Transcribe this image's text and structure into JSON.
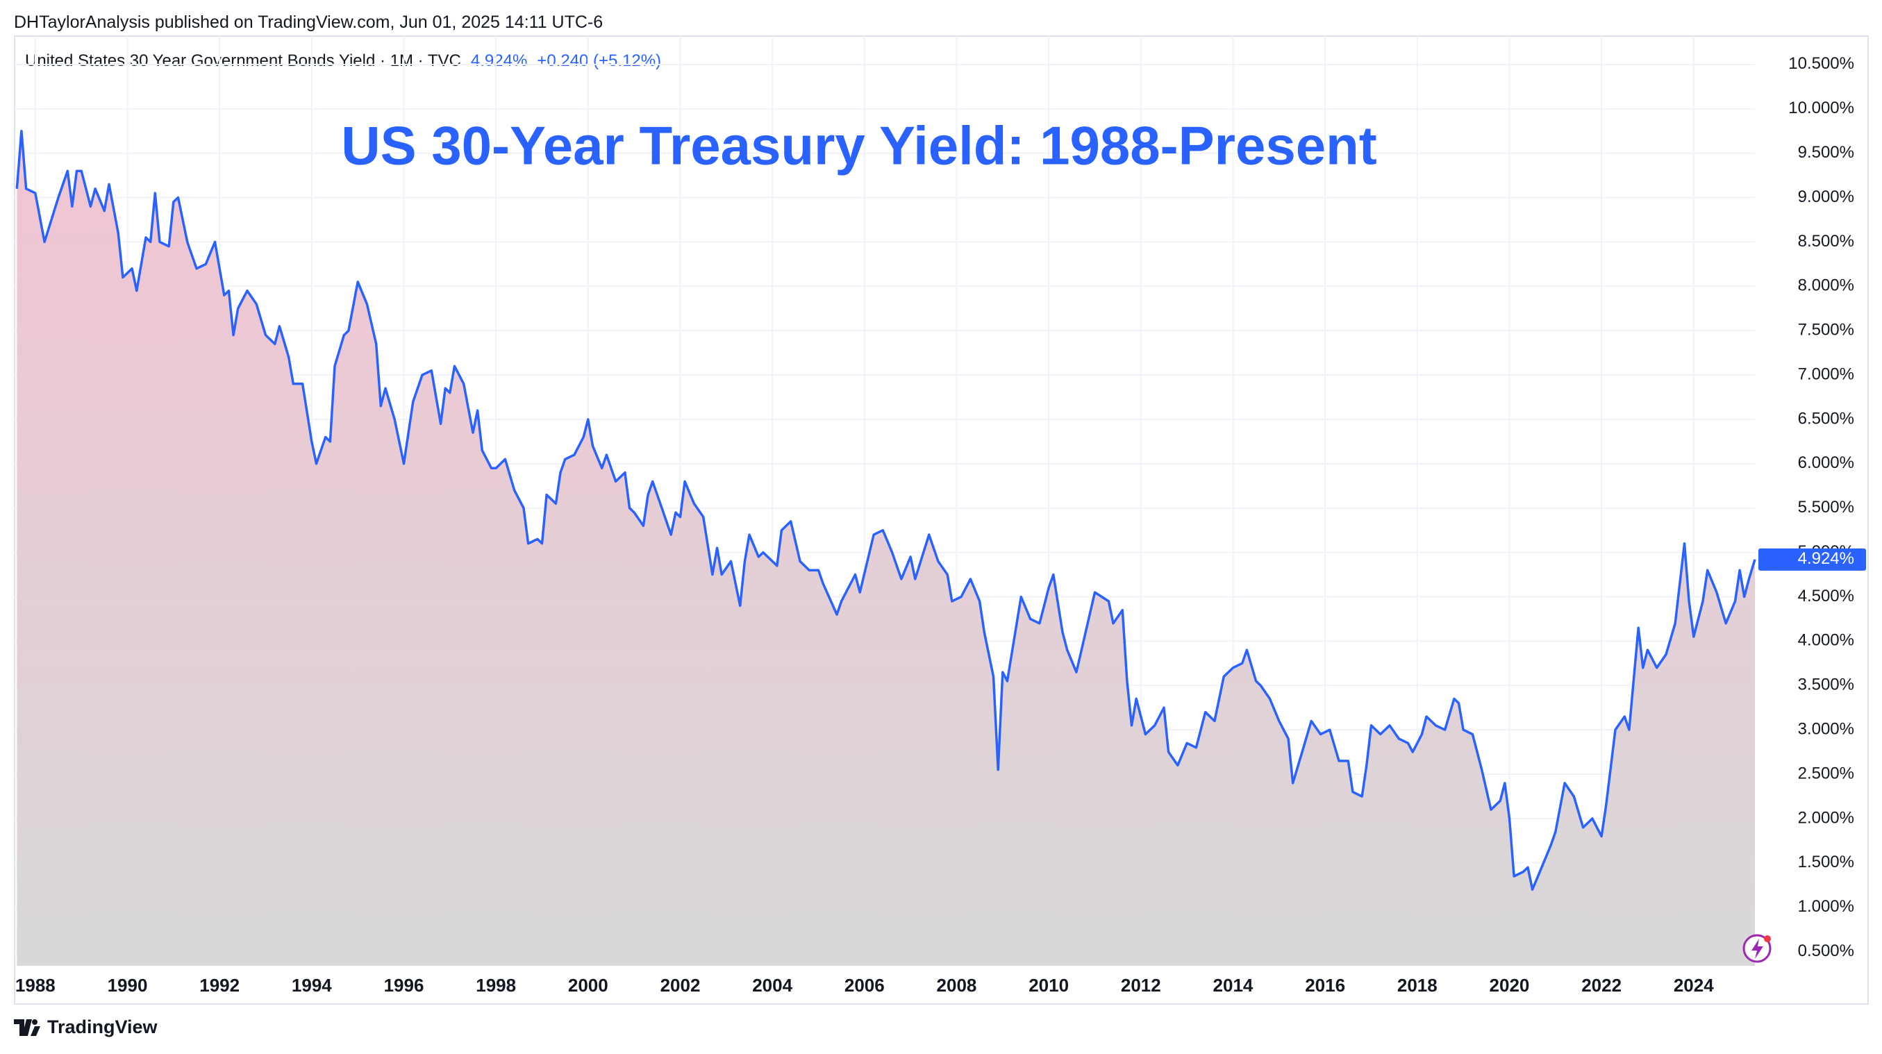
{
  "header": {
    "published": "DHTaylorAnalysis published on TradingView.com, Jun 01, 2025 14:11 UTC-6",
    "symbol": "United States 30 Year Government Bonds Yield · 1M · TVC",
    "price": "4.924%",
    "change": "+0.240 (+5.12%)"
  },
  "footer": {
    "brand": "TradingView"
  },
  "chart_data": {
    "type": "area",
    "title": "US 30-Year Treasury Yield: 1988-Present",
    "color": "#2962ff",
    "x": [
      1987.6,
      1987.7,
      1987.8,
      1988.0,
      1988.2,
      1988.5,
      1988.7,
      1988.8,
      1988.9,
      1989.0,
      1989.2,
      1989.3,
      1989.5,
      1989.6,
      1989.8,
      1989.9,
      1990.1,
      1990.2,
      1990.4,
      1990.5,
      1990.6,
      1990.7,
      1990.9,
      1991.0,
      1991.1,
      1991.3,
      1991.5,
      1991.7,
      1991.9,
      1992.1,
      1992.2,
      1992.3,
      1992.4,
      1992.6,
      1992.8,
      1993.0,
      1993.2,
      1993.3,
      1993.5,
      1993.6,
      1993.8,
      1994.0,
      1994.1,
      1994.3,
      1994.4,
      1994.5,
      1994.7,
      1994.8,
      1995.0,
      1995.2,
      1995.4,
      1995.5,
      1995.6,
      1995.8,
      1996.0,
      1996.2,
      1996.4,
      1996.6,
      1996.8,
      1996.9,
      1997.0,
      1997.1,
      1997.3,
      1997.5,
      1997.6,
      1997.7,
      1997.9,
      1998.0,
      1998.2,
      1998.4,
      1998.6,
      1998.7,
      1998.9,
      1999.0,
      1999.1,
      1999.3,
      1999.4,
      1999.5,
      1999.7,
      1999.9,
      2000.0,
      2000.1,
      2000.3,
      2000.4,
      2000.6,
      2000.8,
      2000.9,
      2001.0,
      2001.2,
      2001.3,
      2001.4,
      2001.6,
      2001.8,
      2001.9,
      2002.0,
      2002.1,
      2002.3,
      2002.5,
      2002.7,
      2002.8,
      2002.9,
      2003.1,
      2003.3,
      2003.4,
      2003.5,
      2003.7,
      2003.8,
      2004.1,
      2004.2,
      2004.4,
      2004.6,
      2004.8,
      2005.0,
      2005.1,
      2005.4,
      2005.5,
      2005.8,
      2005.9,
      2006.2,
      2006.4,
      2006.6,
      2006.8,
      2007.0,
      2007.1,
      2007.4,
      2007.6,
      2007.8,
      2007.9,
      2008.1,
      2008.3,
      2008.5,
      2008.6,
      2008.8,
      2008.9,
      2009.0,
      2009.1,
      2009.4,
      2009.6,
      2009.8,
      2010.0,
      2010.1,
      2010.3,
      2010.4,
      2010.6,
      2010.8,
      2011.0,
      2011.3,
      2011.4,
      2011.6,
      2011.7,
      2011.8,
      2011.9,
      2012.1,
      2012.3,
      2012.5,
      2012.6,
      2012.8,
      2013.0,
      2013.2,
      2013.4,
      2013.6,
      2013.8,
      2014.0,
      2014.2,
      2014.3,
      2014.5,
      2014.6,
      2014.8,
      2015.0,
      2015.2,
      2015.3,
      2015.5,
      2015.7,
      2015.9,
      2016.1,
      2016.3,
      2016.5,
      2016.6,
      2016.8,
      2016.9,
      2017.0,
      2017.2,
      2017.4,
      2017.6,
      2017.8,
      2017.9,
      2018.1,
      2018.2,
      2018.4,
      2018.6,
      2018.8,
      2018.9,
      2019.0,
      2019.2,
      2019.4,
      2019.6,
      2019.8,
      2019.9,
      2020.0,
      2020.1,
      2020.3,
      2020.4,
      2020.5,
      2020.7,
      2020.9,
      2021.0,
      2021.2,
      2021.4,
      2021.6,
      2021.8,
      2022.0,
      2022.1,
      2022.3,
      2022.5,
      2022.6,
      2022.8,
      2022.9,
      2023.0,
      2023.2,
      2023.4,
      2023.6,
      2023.8,
      2023.9,
      2024.0,
      2024.2,
      2024.3,
      2024.5,
      2024.7,
      2024.9,
      2025.0,
      2025.1,
      2025.2,
      2025.33
    ],
    "values": [
      9.1,
      9.75,
      9.1,
      9.05,
      8.5,
      9.0,
      9.3,
      8.9,
      9.3,
      9.3,
      8.9,
      9.1,
      8.85,
      9.15,
      8.6,
      8.1,
      8.2,
      7.95,
      8.55,
      8.5,
      9.05,
      8.5,
      8.45,
      8.95,
      9.0,
      8.5,
      8.2,
      8.25,
      8.5,
      7.9,
      7.95,
      7.45,
      7.75,
      7.95,
      7.8,
      7.45,
      7.35,
      7.55,
      7.2,
      6.9,
      6.9,
      6.25,
      6.0,
      6.3,
      6.25,
      7.1,
      7.45,
      7.5,
      8.05,
      7.8,
      7.35,
      6.65,
      6.85,
      6.5,
      6.0,
      6.7,
      7.0,
      7.05,
      6.45,
      6.85,
      6.8,
      7.1,
      6.9,
      6.35,
      6.6,
      6.15,
      5.95,
      5.95,
      6.05,
      5.7,
      5.5,
      5.1,
      5.15,
      5.1,
      5.65,
      5.55,
      5.9,
      6.05,
      6.1,
      6.3,
      6.5,
      6.2,
      5.95,
      6.1,
      5.8,
      5.9,
      5.5,
      5.45,
      5.3,
      5.65,
      5.8,
      5.5,
      5.2,
      5.45,
      5.4,
      5.8,
      5.55,
      5.4,
      4.75,
      5.05,
      4.75,
      4.9,
      4.4,
      4.9,
      5.2,
      4.95,
      5.0,
      4.85,
      5.25,
      5.35,
      4.9,
      4.8,
      4.8,
      4.65,
      4.3,
      4.45,
      4.75,
      4.55,
      5.2,
      5.25,
      5.0,
      4.7,
      4.95,
      4.7,
      5.2,
      4.9,
      4.75,
      4.45,
      4.5,
      4.7,
      4.45,
      4.1,
      3.6,
      2.55,
      3.65,
      3.55,
      4.5,
      4.25,
      4.2,
      4.6,
      4.75,
      4.1,
      3.9,
      3.65,
      4.1,
      4.55,
      4.45,
      4.2,
      4.35,
      3.55,
      3.05,
      3.35,
      2.95,
      3.05,
      3.25,
      2.75,
      2.6,
      2.85,
      2.8,
      3.2,
      3.1,
      3.6,
      3.7,
      3.75,
      3.9,
      3.55,
      3.5,
      3.35,
      3.1,
      2.9,
      2.4,
      2.75,
      3.1,
      2.95,
      3.0,
      2.65,
      2.65,
      2.3,
      2.25,
      2.6,
      3.05,
      2.95,
      3.05,
      2.9,
      2.85,
      2.75,
      2.95,
      3.15,
      3.05,
      3.0,
      3.35,
      3.3,
      3.0,
      2.95,
      2.55,
      2.1,
      2.2,
      2.4,
      2.0,
      1.35,
      1.4,
      1.45,
      1.2,
      1.45,
      1.7,
      1.85,
      2.4,
      2.25,
      1.9,
      2.0,
      1.8,
      2.15,
      3.0,
      3.15,
      3.0,
      4.15,
      3.7,
      3.9,
      3.7,
      3.85,
      4.2,
      5.1,
      4.45,
      4.05,
      4.45,
      4.8,
      4.55,
      4.2,
      4.45,
      4.8,
      4.5,
      4.7,
      4.92
    ],
    "xlim": [
      1987.55,
      2025.33
    ],
    "xticks": [
      1988,
      1990,
      1992,
      1994,
      1996,
      1998,
      2000,
      2002,
      2004,
      2006,
      2008,
      2010,
      2012,
      2014,
      2016,
      2018,
      2020,
      2022,
      2024
    ],
    "ylim": [
      0.34,
      10.82
    ],
    "yticks": [
      {
        "value": 0.5,
        "label": "0.500%"
      },
      {
        "value": 1.0,
        "label": "1.000%"
      },
      {
        "value": 1.5,
        "label": "1.500%"
      },
      {
        "value": 2.0,
        "label": "2.000%"
      },
      {
        "value": 2.5,
        "label": "2.500%"
      },
      {
        "value": 3.0,
        "label": "3.000%"
      },
      {
        "value": 3.5,
        "label": "3.500%"
      },
      {
        "value": 4.0,
        "label": "4.000%"
      },
      {
        "value": 4.5,
        "label": "4.500%"
      },
      {
        "value": 5.0,
        "label": "5.000%"
      },
      {
        "value": 5.5,
        "label": "5.500%"
      },
      {
        "value": 6.0,
        "label": "6.000%"
      },
      {
        "value": 6.5,
        "label": "6.500%"
      },
      {
        "value": 7.0,
        "label": "7.000%"
      },
      {
        "value": 7.5,
        "label": "7.500%"
      },
      {
        "value": 8.0,
        "label": "8.000%"
      },
      {
        "value": 8.5,
        "label": "8.500%"
      },
      {
        "value": 9.0,
        "label": "9.000%"
      },
      {
        "value": 9.5,
        "label": "9.500%"
      },
      {
        "value": 10.0,
        "label": "10.000%"
      },
      {
        "value": 10.5,
        "label": "10.500%"
      }
    ],
    "grid": true
  }
}
